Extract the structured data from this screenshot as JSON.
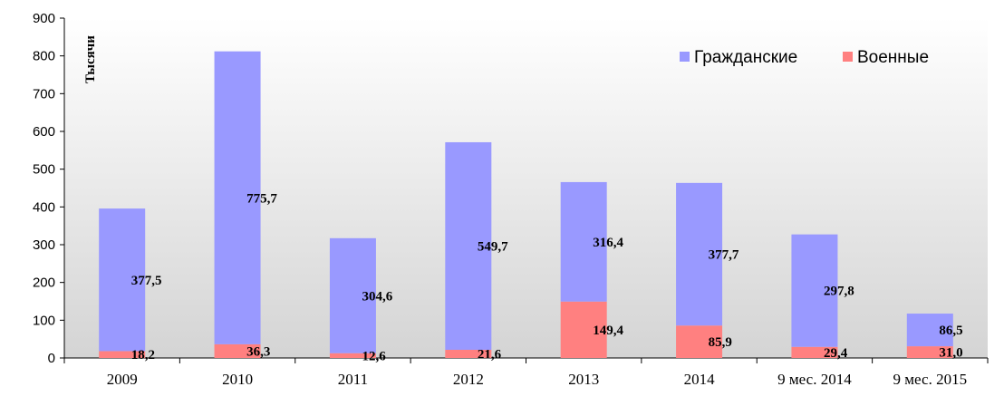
{
  "chart_data": {
    "type": "bar",
    "stacked": true,
    "categories": [
      "2009",
      "2010",
      "2011",
      "2012",
      "2013",
      "2014",
      "9 мес. 2014",
      "9 мес. 2015"
    ],
    "series": [
      {
        "name": "Военные",
        "values": [
          18.2,
          36.3,
          12.6,
          21.6,
          149.4,
          85.9,
          29.4,
          31.0
        ],
        "labels": [
          "18,2",
          "36,3",
          "12,6",
          "21,6",
          "149,4",
          "85,9",
          "29,4",
          "31,0"
        ],
        "color": "#ff8080"
      },
      {
        "name": "Гражданские",
        "values": [
          377.5,
          775.7,
          304.6,
          549.7,
          316.4,
          377.7,
          297.8,
          86.5
        ],
        "labels": [
          "377,5",
          "775,7",
          "304,6",
          "549,7",
          "316,4",
          "377,7",
          "297,8",
          "86,5"
        ],
        "color": "#9999ff"
      }
    ],
    "ylabel": "Тысячи",
    "ylim": [
      0,
      900
    ],
    "yticks": [
      0,
      100,
      200,
      300,
      400,
      500,
      600,
      700,
      800,
      900
    ],
    "legend": {
      "position": "top-right",
      "order": [
        "Гражданские",
        "Военные"
      ]
    },
    "grid": false,
    "plot_background": "gradient white to light gray"
  }
}
